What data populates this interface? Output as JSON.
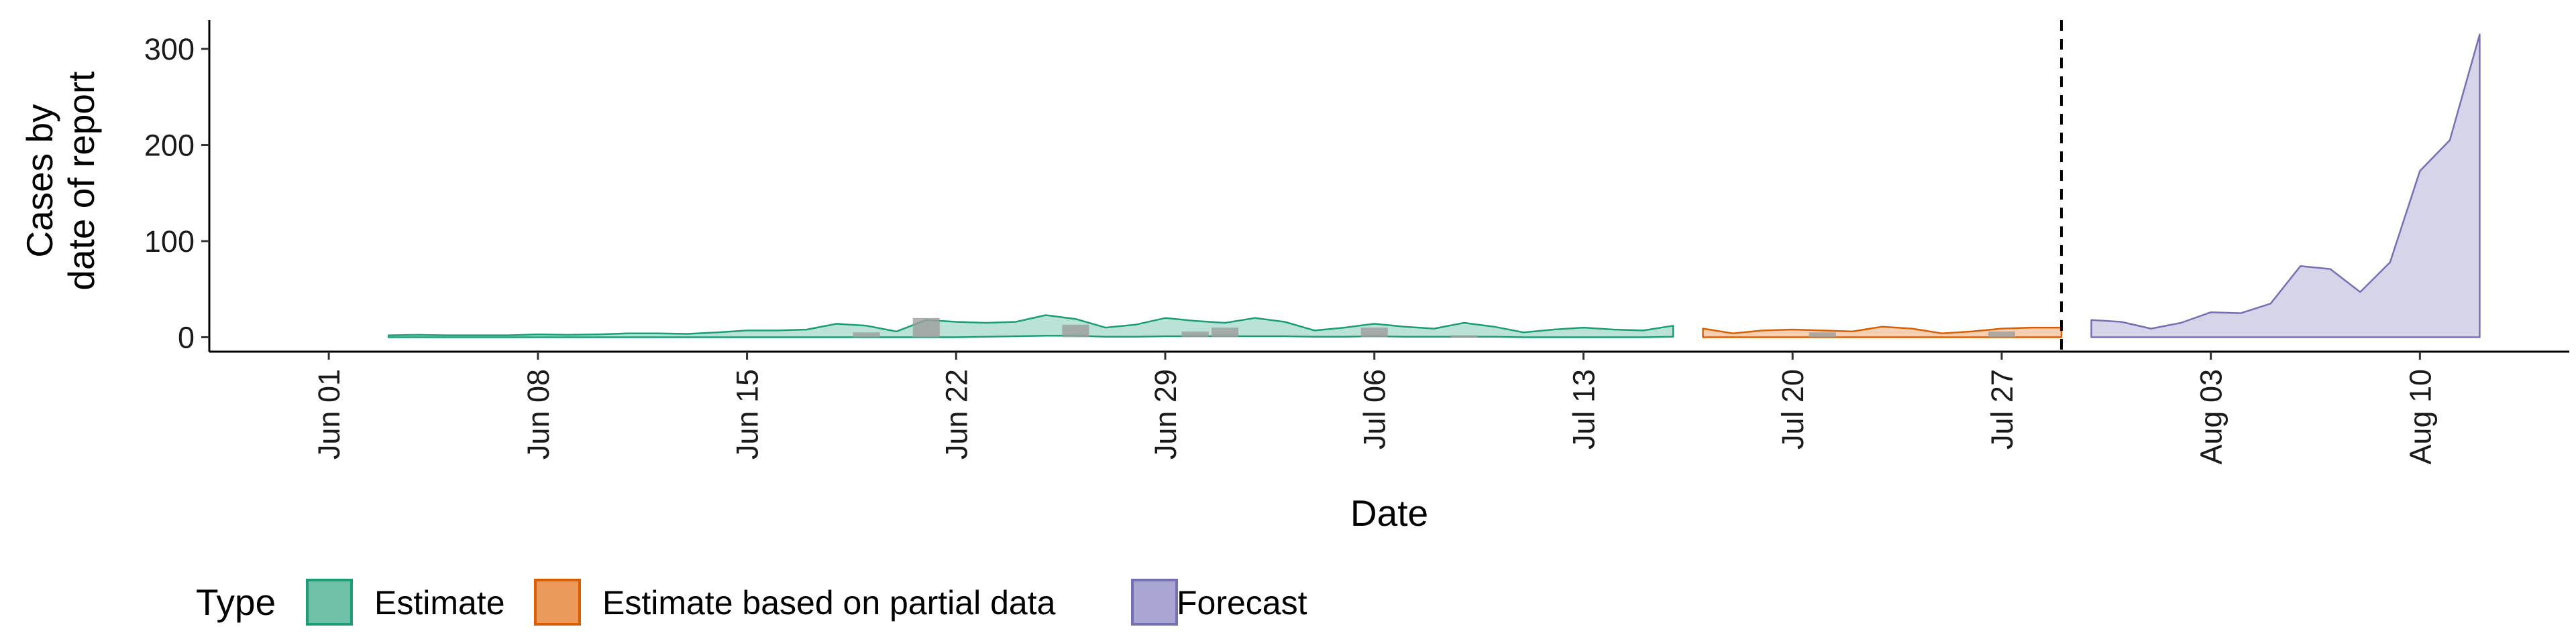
{
  "chart_data": {
    "type": "area",
    "xlabel": "Date",
    "ylabel_lines": [
      "Cases by",
      "date of report"
    ],
    "ylim": [
      -15,
      330
    ],
    "xlim": [
      "2020-05-28",
      "2020-08-15"
    ],
    "x_ticks": [
      {
        "date": "2020-06-01",
        "label": "Jun 01"
      },
      {
        "date": "2020-06-08",
        "label": "Jun 08"
      },
      {
        "date": "2020-06-15",
        "label": "Jun 15"
      },
      {
        "date": "2020-06-22",
        "label": "Jun 22"
      },
      {
        "date": "2020-06-29",
        "label": "Jun 29"
      },
      {
        "date": "2020-07-06",
        "label": "Jul 06"
      },
      {
        "date": "2020-07-13",
        "label": "Jul 13"
      },
      {
        "date": "2020-07-20",
        "label": "Jul 20"
      },
      {
        "date": "2020-07-27",
        "label": "Jul 27"
      },
      {
        "date": "2020-08-03",
        "label": "Aug 03"
      },
      {
        "date": "2020-08-10",
        "label": "Aug 10"
      }
    ],
    "y_ticks": [
      {
        "value": 0,
        "label": "0"
      },
      {
        "value": 100,
        "label": "100"
      },
      {
        "value": 200,
        "label": "200"
      },
      {
        "value": 300,
        "label": "300"
      }
    ],
    "forecast_start": "2020-07-29",
    "legend": {
      "title": "Type",
      "position": "bottom",
      "items": [
        {
          "name": "Estimate",
          "fill": "#6ec1a6",
          "stroke": "#1b9e77"
        },
        {
          "name": "Estimate based on partial data",
          "fill": "#ec9a5c",
          "stroke": "#d95f02"
        },
        {
          "name": "Forecast",
          "fill": "#a9a6d3",
          "stroke": "#7570b3"
        }
      ]
    },
    "series": [
      {
        "name": "Estimate",
        "fill": "#1b9e77",
        "fill_opacity": 0.3,
        "stroke": "#1b9e77",
        "x": [
          "2020-06-03",
          "2020-06-04",
          "2020-06-05",
          "2020-06-06",
          "2020-06-07",
          "2020-06-08",
          "2020-06-09",
          "2020-06-10",
          "2020-06-11",
          "2020-06-12",
          "2020-06-13",
          "2020-06-14",
          "2020-06-15",
          "2020-06-16",
          "2020-06-17",
          "2020-06-18",
          "2020-06-19",
          "2020-06-20",
          "2020-06-21",
          "2020-06-22",
          "2020-06-23",
          "2020-06-24",
          "2020-06-25",
          "2020-06-26",
          "2020-06-27",
          "2020-06-28",
          "2020-06-29",
          "2020-06-30",
          "2020-07-01",
          "2020-07-02",
          "2020-07-03",
          "2020-07-04",
          "2020-07-05",
          "2020-07-06",
          "2020-07-07",
          "2020-07-08",
          "2020-07-09",
          "2020-07-10",
          "2020-07-11",
          "2020-07-12",
          "2020-07-13",
          "2020-07-14",
          "2020-07-15",
          "2020-07-16"
        ],
        "upper": [
          2,
          2.5,
          2,
          2,
          2,
          3,
          2.5,
          3,
          4,
          4,
          3.5,
          5,
          7,
          7,
          8,
          14,
          12,
          6,
          18,
          16,
          15,
          16,
          23,
          19,
          10,
          13,
          20,
          17,
          15,
          20,
          16,
          7,
          10,
          14,
          11,
          9,
          15,
          11,
          5,
          8,
          10,
          8,
          7,
          12
        ],
        "lower": [
          0,
          0,
          0,
          0,
          0,
          0,
          0,
          0,
          0,
          0,
          0,
          0,
          0,
          0,
          0,
          0,
          0,
          0,
          0,
          0,
          0.5,
          1,
          1.5,
          1.5,
          0.5,
          0.5,
          1,
          1,
          1,
          1,
          1,
          0.5,
          0.5,
          1,
          0.5,
          0.5,
          0.5,
          0.5,
          0,
          0,
          0,
          0,
          0,
          0.5
        ]
      },
      {
        "name": "Estimate based on partial data",
        "fill": "#d95f02",
        "fill_opacity": 0.3,
        "stroke": "#d95f02",
        "x": [
          "2020-07-17",
          "2020-07-18",
          "2020-07-19",
          "2020-07-20",
          "2020-07-21",
          "2020-07-22",
          "2020-07-23",
          "2020-07-24",
          "2020-07-25",
          "2020-07-26",
          "2020-07-27",
          "2020-07-28",
          "2020-07-29"
        ],
        "upper": [
          9,
          4,
          7,
          8,
          7,
          6,
          11,
          9,
          4,
          6,
          9,
          10,
          10
        ],
        "lower": [
          0,
          0,
          0,
          0,
          0,
          0,
          0,
          0,
          0,
          0,
          0,
          0,
          0
        ]
      },
      {
        "name": "Forecast",
        "fill": "#7570b3",
        "fill_opacity": 0.3,
        "stroke": "#7570b3",
        "x": [
          "2020-07-30",
          "2020-07-31",
          "2020-08-01",
          "2020-08-02",
          "2020-08-03",
          "2020-08-04",
          "2020-08-05",
          "2020-08-06",
          "2020-08-07",
          "2020-08-08",
          "2020-08-09",
          "2020-08-10",
          "2020-08-11",
          "2020-08-12"
        ],
        "upper": [
          18,
          16,
          9,
          15,
          26,
          25,
          35,
          74,
          71,
          47,
          78,
          173,
          205,
          315
        ],
        "lower": [
          0,
          0,
          0,
          0,
          0,
          0,
          0,
          0,
          0,
          0,
          0,
          0,
          0,
          0
        ]
      }
    ],
    "observed": {
      "fill": "#9e9e9e",
      "fill_opacity": 0.8,
      "points": [
        {
          "date": "2020-06-19",
          "value": 5
        },
        {
          "date": "2020-06-21",
          "value": 20
        },
        {
          "date": "2020-06-26",
          "value": 13
        },
        {
          "date": "2020-06-30",
          "value": 6
        },
        {
          "date": "2020-07-01",
          "value": 10
        },
        {
          "date": "2020-07-06",
          "value": 10
        },
        {
          "date": "2020-07-09",
          "value": 2
        },
        {
          "date": "2020-07-21",
          "value": 5
        },
        {
          "date": "2020-07-27",
          "value": 6
        }
      ]
    }
  }
}
